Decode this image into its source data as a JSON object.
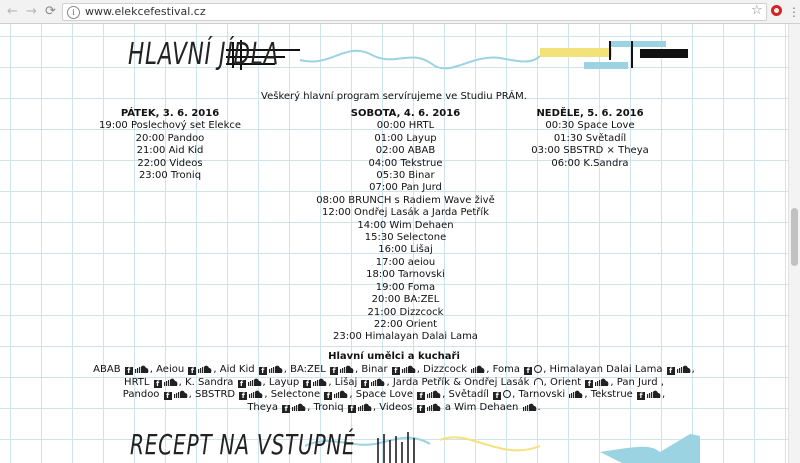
{
  "browser": {
    "back": "←",
    "forward": "→",
    "reload": "⟳",
    "url": "www.elekcefestival.cz",
    "info": "i",
    "star": "☆",
    "menu": "⋮"
  },
  "section": {
    "title": "HLAVNÍ JÍDLA",
    "intro": "Veškerý hlavní program servírujeme ve Studiu PRÁM."
  },
  "days": [
    {
      "title": "PÁTEK, 3. 6. 2016",
      "items": [
        "19:00 Poslechový set Elekce",
        "20:00 Pandoo",
        "21:00 Aid Kid",
        "22:00 Videos",
        "23:00 Troniq"
      ]
    },
    {
      "title": "SOBOTA, 4. 6. 2016",
      "items": [
        "00:00 HRTL",
        "01:00 Layup",
        "02:00 ABAB",
        "04:00 Tekstrue",
        "05:30 Binar",
        "07:00 Pan Jurd",
        "08:00 BRUNCH s Radiem Wave živě",
        "12:00 Ondřej Lasák a Jarda Petřík",
        "14:00 Wim Dehaen",
        "15:30 Selectone",
        "16:00 Lišaj",
        "17:00 aeiou",
        "18:00 Tarnovski",
        "19:00 Foma",
        "20:00 BA:ZEL",
        "21:00 Dizzcock",
        "22:00 Orient",
        "23:00 Himalayan Dalai Lama"
      ]
    },
    {
      "title": "NEDĚLE, 5. 6. 2016",
      "items": [
        "00:30 Space Love",
        "01:30 Světadíl",
        "03:00 SBSTRD × Theya",
        "06:00 K.Sandra"
      ]
    }
  ],
  "artists": {
    "title": "Hlavní umělci a kuchaři",
    "lines": [
      [
        {
          "t": "ABAB",
          "i": [
            "fb",
            "sc"
          ],
          "s": ","
        },
        {
          "t": "Aeiou",
          "i": [
            "fb",
            "sc"
          ],
          "s": ","
        },
        {
          "t": "Aid Kid",
          "i": [
            "fb",
            "sc"
          ],
          "s": ","
        },
        {
          "t": "BA:ZEL",
          "i": [
            "fb",
            "sc"
          ],
          "s": ","
        },
        {
          "t": "Binar",
          "i": [
            "fb",
            "sc"
          ],
          "s": ","
        },
        {
          "t": "Dizzcock",
          "i": [
            "sc"
          ],
          "s": ","
        },
        {
          "t": "Foma",
          "i": [
            "fb",
            "ring"
          ],
          "s": ","
        },
        {
          "t": "Himalayan Dalai Lama",
          "i": [
            "fb",
            "sc"
          ],
          "s": ","
        }
      ],
      [
        {
          "t": "HRTL",
          "i": [
            "fb",
            "sc"
          ],
          "s": ","
        },
        {
          "t": "K. Sandra",
          "i": [
            "fb",
            "sc"
          ],
          "s": ","
        },
        {
          "t": "Layup",
          "i": [
            "fb",
            "sc"
          ],
          "s": ","
        },
        {
          "t": "Lišaj",
          "i": [
            "fb",
            "sc"
          ],
          "s": ","
        },
        {
          "t": "Jarda Petřík & Ondřej Lasák",
          "i": [
            "head"
          ],
          "s": ","
        },
        {
          "t": "Orient",
          "i": [
            "fb",
            "sc"
          ],
          "s": ","
        },
        {
          "t": "Pan Jurd",
          "i": [],
          "s": ","
        }
      ],
      [
        {
          "t": "Pandoo",
          "i": [
            "fb",
            "sc"
          ],
          "s": ","
        },
        {
          "t": "SBSTRD",
          "i": [
            "fb",
            "sc"
          ],
          "s": ","
        },
        {
          "t": "Selectone",
          "i": [
            "fb",
            "sc"
          ],
          "s": ","
        },
        {
          "t": "Space Love",
          "i": [
            "fb",
            "sc"
          ],
          "s": ","
        },
        {
          "t": "Světadíl",
          "i": [
            "fb",
            "ring"
          ],
          "s": ","
        },
        {
          "t": "Tarnovski",
          "i": [
            "sc"
          ],
          "s": ","
        },
        {
          "t": "Tekstrue",
          "i": [
            "fb",
            "sc"
          ],
          "s": ","
        }
      ],
      [
        {
          "t": "Theya",
          "i": [
            "fb",
            "sc"
          ],
          "s": ","
        },
        {
          "t": "Troniq",
          "i": [
            "fb",
            "sc"
          ],
          "s": ","
        },
        {
          "t": "Videos",
          "i": [
            "fb",
            "sc"
          ],
          "s": ""
        },
        {
          "t": "a Wim Dehaen",
          "i": [
            "sc"
          ],
          "s": "."
        }
      ]
    ]
  },
  "next_section": {
    "title": "RECEPT NA VSTUPNÉ"
  },
  "icon_names": {
    "fb": "facebook-icon",
    "sc": "soundcloud-icon",
    "ring": "web-icon",
    "head": "headphones-icon"
  },
  "colors": {
    "accent_blue": "#9cd3e3",
    "accent_yellow": "#f3e27a",
    "grid": "#cfe3ea"
  }
}
